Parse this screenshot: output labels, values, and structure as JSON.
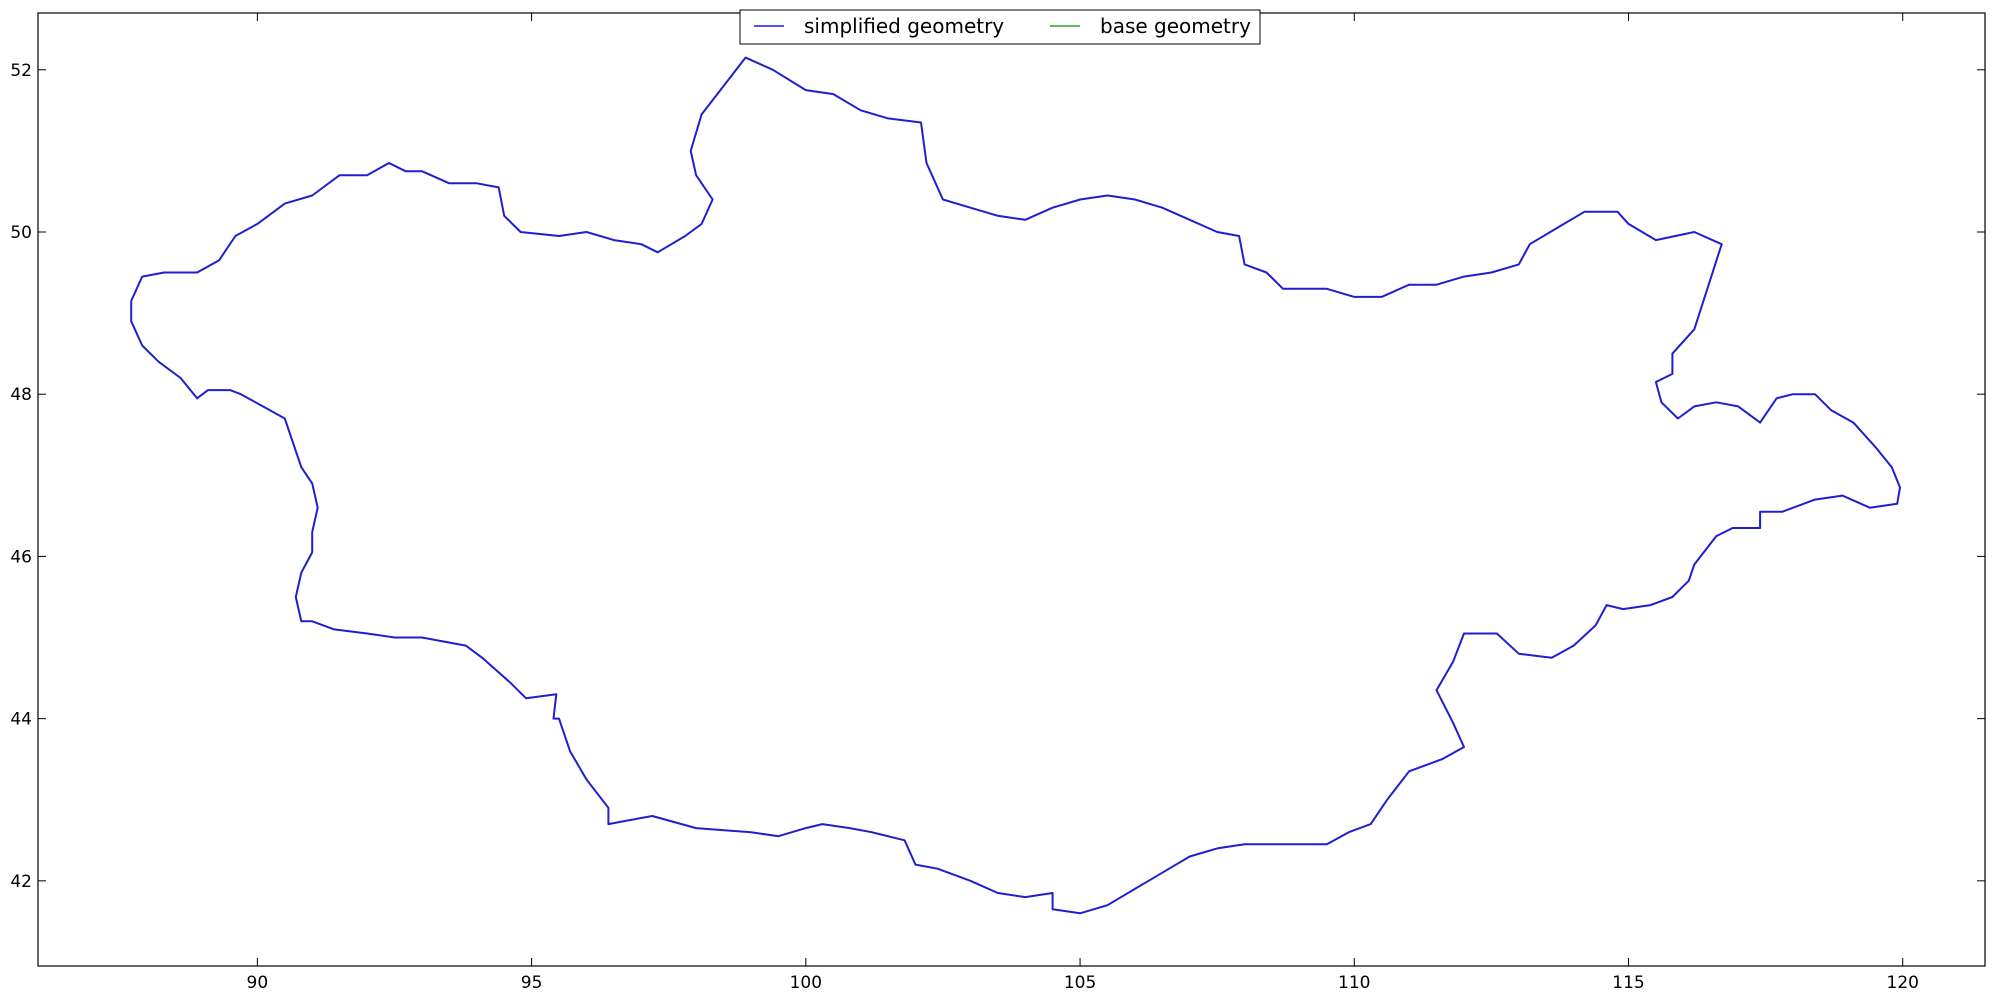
{
  "chart_data": {
    "type": "line",
    "title": "",
    "xlabel": "",
    "ylabel": "",
    "xlim": [
      86,
      121.5
    ],
    "ylim": [
      40.95,
      52.7
    ],
    "x_ticks": [
      "90",
      "95",
      "100",
      "105",
      "110",
      "115",
      "120"
    ],
    "y_ticks": [
      "42",
      "44",
      "46",
      "48",
      "50",
      "52"
    ],
    "grid": false,
    "legend_position": "top-center",
    "colors": {
      "simplified": "#1f1fcf",
      "base": "#2ca02c"
    },
    "series": [
      {
        "name": "simplified geometry",
        "points": [
          [
            87.7,
            49.15
          ],
          [
            87.9,
            49.45
          ],
          [
            88.3,
            49.5
          ],
          [
            88.9,
            49.5
          ],
          [
            89.3,
            49.65
          ],
          [
            89.6,
            49.95
          ],
          [
            90.0,
            50.1
          ],
          [
            90.5,
            50.35
          ],
          [
            91.0,
            50.45
          ],
          [
            91.5,
            50.7
          ],
          [
            92.0,
            50.7
          ],
          [
            92.4,
            50.85
          ],
          [
            92.7,
            50.75
          ],
          [
            93.0,
            50.75
          ],
          [
            93.5,
            50.6
          ],
          [
            94.0,
            50.6
          ],
          [
            94.4,
            50.55
          ],
          [
            94.5,
            50.2
          ],
          [
            94.8,
            50.0
          ],
          [
            95.5,
            49.95
          ],
          [
            96.0,
            50.0
          ],
          [
            96.5,
            49.9
          ],
          [
            97.0,
            49.85
          ],
          [
            97.3,
            49.75
          ],
          [
            97.8,
            49.95
          ],
          [
            98.1,
            50.1
          ],
          [
            98.3,
            50.4
          ],
          [
            98.0,
            50.7
          ],
          [
            97.9,
            51.0
          ],
          [
            98.1,
            51.45
          ],
          [
            98.5,
            51.8
          ],
          [
            98.9,
            52.15
          ],
          [
            99.4,
            52.0
          ],
          [
            100.0,
            51.75
          ],
          [
            100.5,
            51.7
          ],
          [
            101.0,
            51.5
          ],
          [
            101.5,
            51.4
          ],
          [
            102.1,
            51.35
          ],
          [
            102.2,
            50.85
          ],
          [
            102.5,
            50.4
          ],
          [
            103.0,
            50.3
          ],
          [
            103.5,
            50.2
          ],
          [
            104.0,
            50.15
          ],
          [
            104.5,
            50.3
          ],
          [
            105.0,
            50.4
          ],
          [
            105.5,
            50.45
          ],
          [
            106.0,
            50.4
          ],
          [
            106.5,
            50.3
          ],
          [
            107.0,
            50.15
          ],
          [
            107.5,
            50.0
          ],
          [
            107.9,
            49.95
          ],
          [
            108.0,
            49.6
          ],
          [
            108.4,
            49.5
          ],
          [
            108.7,
            49.3
          ],
          [
            109.5,
            49.3
          ],
          [
            110.0,
            49.2
          ],
          [
            110.5,
            49.2
          ],
          [
            111.0,
            49.35
          ],
          [
            111.5,
            49.35
          ],
          [
            112.0,
            49.45
          ],
          [
            112.5,
            49.5
          ],
          [
            113.0,
            49.6
          ],
          [
            113.2,
            49.85
          ],
          [
            113.7,
            50.05
          ],
          [
            114.2,
            50.25
          ],
          [
            114.8,
            50.25
          ],
          [
            115.0,
            50.1
          ],
          [
            115.5,
            49.9
          ],
          [
            116.2,
            50.0
          ],
          [
            116.7,
            49.85
          ],
          [
            116.2,
            48.8
          ],
          [
            115.8,
            48.5
          ],
          [
            115.8,
            48.25
          ],
          [
            115.5,
            48.15
          ],
          [
            115.6,
            47.9
          ],
          [
            115.9,
            47.7
          ],
          [
            116.2,
            47.85
          ],
          [
            116.6,
            47.9
          ],
          [
            117.0,
            47.85
          ],
          [
            117.4,
            47.65
          ],
          [
            117.7,
            47.95
          ],
          [
            118.0,
            48.0
          ],
          [
            118.4,
            48.0
          ],
          [
            118.7,
            47.8
          ],
          [
            119.1,
            47.65
          ],
          [
            119.5,
            47.35
          ],
          [
            119.8,
            47.1
          ],
          [
            119.95,
            46.85
          ],
          [
            119.9,
            46.65
          ],
          [
            119.4,
            46.6
          ],
          [
            118.9,
            46.75
          ],
          [
            118.4,
            46.7
          ],
          [
            117.8,
            46.55
          ],
          [
            117.4,
            46.55
          ],
          [
            117.4,
            46.35
          ],
          [
            116.9,
            46.35
          ],
          [
            116.6,
            46.25
          ],
          [
            116.2,
            45.9
          ],
          [
            116.1,
            45.7
          ],
          [
            115.8,
            45.5
          ],
          [
            115.4,
            45.4
          ],
          [
            114.9,
            45.35
          ],
          [
            114.6,
            45.4
          ],
          [
            114.4,
            45.15
          ],
          [
            114.0,
            44.9
          ],
          [
            113.6,
            44.75
          ],
          [
            113.0,
            44.8
          ],
          [
            112.6,
            45.05
          ],
          [
            112.0,
            45.05
          ],
          [
            111.8,
            44.7
          ],
          [
            111.5,
            44.35
          ],
          [
            111.8,
            43.95
          ],
          [
            112.0,
            43.65
          ],
          [
            111.6,
            43.5
          ],
          [
            111.0,
            43.35
          ],
          [
            110.6,
            43.0
          ],
          [
            110.3,
            42.7
          ],
          [
            109.9,
            42.6
          ],
          [
            109.5,
            42.45
          ],
          [
            109.0,
            42.45
          ],
          [
            108.5,
            42.45
          ],
          [
            108.0,
            42.45
          ],
          [
            107.5,
            42.4
          ],
          [
            107.0,
            42.3
          ],
          [
            106.5,
            42.1
          ],
          [
            106.0,
            41.9
          ],
          [
            105.5,
            41.7
          ],
          [
            105.0,
            41.6
          ],
          [
            104.5,
            41.65
          ],
          [
            104.5,
            41.85
          ],
          [
            104.0,
            41.8
          ],
          [
            103.5,
            41.85
          ],
          [
            103.0,
            42.0
          ],
          [
            102.4,
            42.15
          ],
          [
            102.0,
            42.2
          ],
          [
            101.8,
            42.5
          ],
          [
            101.2,
            42.6
          ],
          [
            100.8,
            42.65
          ],
          [
            100.3,
            42.7
          ],
          [
            100.0,
            42.65
          ],
          [
            99.5,
            42.55
          ],
          [
            99.0,
            42.6
          ],
          [
            98.0,
            42.65
          ],
          [
            97.2,
            42.8
          ],
          [
            96.8,
            42.75
          ],
          [
            96.4,
            42.7
          ],
          [
            96.4,
            42.9
          ],
          [
            96.0,
            43.25
          ],
          [
            95.7,
            43.6
          ],
          [
            95.5,
            44.0
          ],
          [
            95.4,
            44.0
          ],
          [
            95.45,
            44.3
          ],
          [
            94.9,
            44.25
          ],
          [
            94.6,
            44.45
          ],
          [
            94.1,
            44.75
          ],
          [
            93.8,
            44.9
          ],
          [
            93.0,
            45.0
          ],
          [
            92.5,
            45.0
          ],
          [
            92.0,
            45.05
          ],
          [
            91.4,
            45.1
          ],
          [
            91.0,
            45.2
          ],
          [
            90.8,
            45.2
          ],
          [
            90.7,
            45.5
          ],
          [
            90.8,
            45.8
          ],
          [
            91.0,
            46.05
          ],
          [
            91.0,
            46.3
          ],
          [
            91.1,
            46.6
          ],
          [
            91.0,
            46.9
          ],
          [
            90.8,
            47.1
          ],
          [
            90.5,
            47.7
          ],
          [
            90.1,
            47.85
          ],
          [
            89.7,
            48.0
          ],
          [
            89.5,
            48.05
          ],
          [
            89.1,
            48.05
          ],
          [
            88.9,
            47.95
          ],
          [
            88.6,
            48.2
          ],
          [
            88.2,
            48.4
          ],
          [
            87.9,
            48.6
          ],
          [
            87.8,
            48.75
          ],
          [
            87.7,
            48.9
          ],
          [
            87.7,
            49.15
          ]
        ]
      },
      {
        "name": "base geometry",
        "points": []
      }
    ]
  }
}
